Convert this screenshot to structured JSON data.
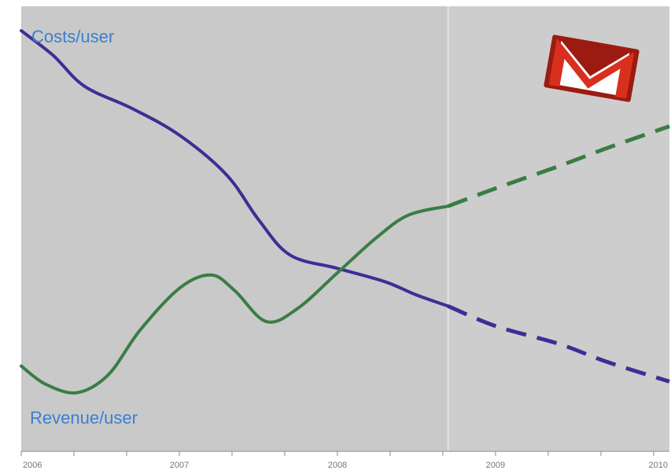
{
  "chart_data": {
    "type": "line",
    "title": "",
    "xlabel": "",
    "ylabel": "",
    "x_ticks": [
      "2006",
      "2007",
      "2008",
      "2009",
      "2010"
    ],
    "xlim": [
      2006.0,
      2010.1
    ],
    "ylim": [
      0,
      100
    ],
    "grid": false,
    "legend": "none",
    "forecast_start": 2008.7,
    "series": [
      {
        "name": "Costs/user",
        "color": "#3b2f96",
        "label_position": "top-left",
        "points": [
          {
            "x": 2006.0,
            "y": 94.5
          },
          {
            "x": 2006.2,
            "y": 89
          },
          {
            "x": 2006.4,
            "y": 82
          },
          {
            "x": 2006.7,
            "y": 77
          },
          {
            "x": 2007.0,
            "y": 71
          },
          {
            "x": 2007.3,
            "y": 62
          },
          {
            "x": 2007.5,
            "y": 52
          },
          {
            "x": 2007.7,
            "y": 44
          },
          {
            "x": 2008.0,
            "y": 41
          },
          {
            "x": 2008.3,
            "y": 38
          },
          {
            "x": 2008.5,
            "y": 35
          },
          {
            "x": 2008.7,
            "y": 32.5
          },
          {
            "x": 2009.0,
            "y": 28
          },
          {
            "x": 2009.4,
            "y": 24
          },
          {
            "x": 2009.7,
            "y": 20
          },
          {
            "x": 2010.1,
            "y": 15.5
          }
        ]
      },
      {
        "name": "Revenue/user",
        "color": "#3a7d44",
        "label_position": "bottom-left",
        "points": [
          {
            "x": 2006.0,
            "y": 19
          },
          {
            "x": 2006.15,
            "y": 15
          },
          {
            "x": 2006.35,
            "y": 13
          },
          {
            "x": 2006.55,
            "y": 17
          },
          {
            "x": 2006.75,
            "y": 27
          },
          {
            "x": 2007.0,
            "y": 36.5
          },
          {
            "x": 2007.2,
            "y": 39.5
          },
          {
            "x": 2007.35,
            "y": 36
          },
          {
            "x": 2007.55,
            "y": 29
          },
          {
            "x": 2007.75,
            "y": 32
          },
          {
            "x": 2008.0,
            "y": 40
          },
          {
            "x": 2008.25,
            "y": 48
          },
          {
            "x": 2008.45,
            "y": 53
          },
          {
            "x": 2008.7,
            "y": 55
          },
          {
            "x": 2009.0,
            "y": 59
          },
          {
            "x": 2009.4,
            "y": 64
          },
          {
            "x": 2009.7,
            "y": 68
          },
          {
            "x": 2010.1,
            "y": 73
          }
        ]
      }
    ]
  },
  "logo": {
    "name": "gmail-m-logo",
    "colors": {
      "red": "#d82f1f",
      "dark_red": "#9c1b10",
      "white": "#ffffff"
    }
  },
  "colors": {
    "actual_background": "#c9c9c9",
    "forecast_background": "#cdcdcd",
    "label_text": "#3a7fd1",
    "divider": "#e3e3e3"
  }
}
